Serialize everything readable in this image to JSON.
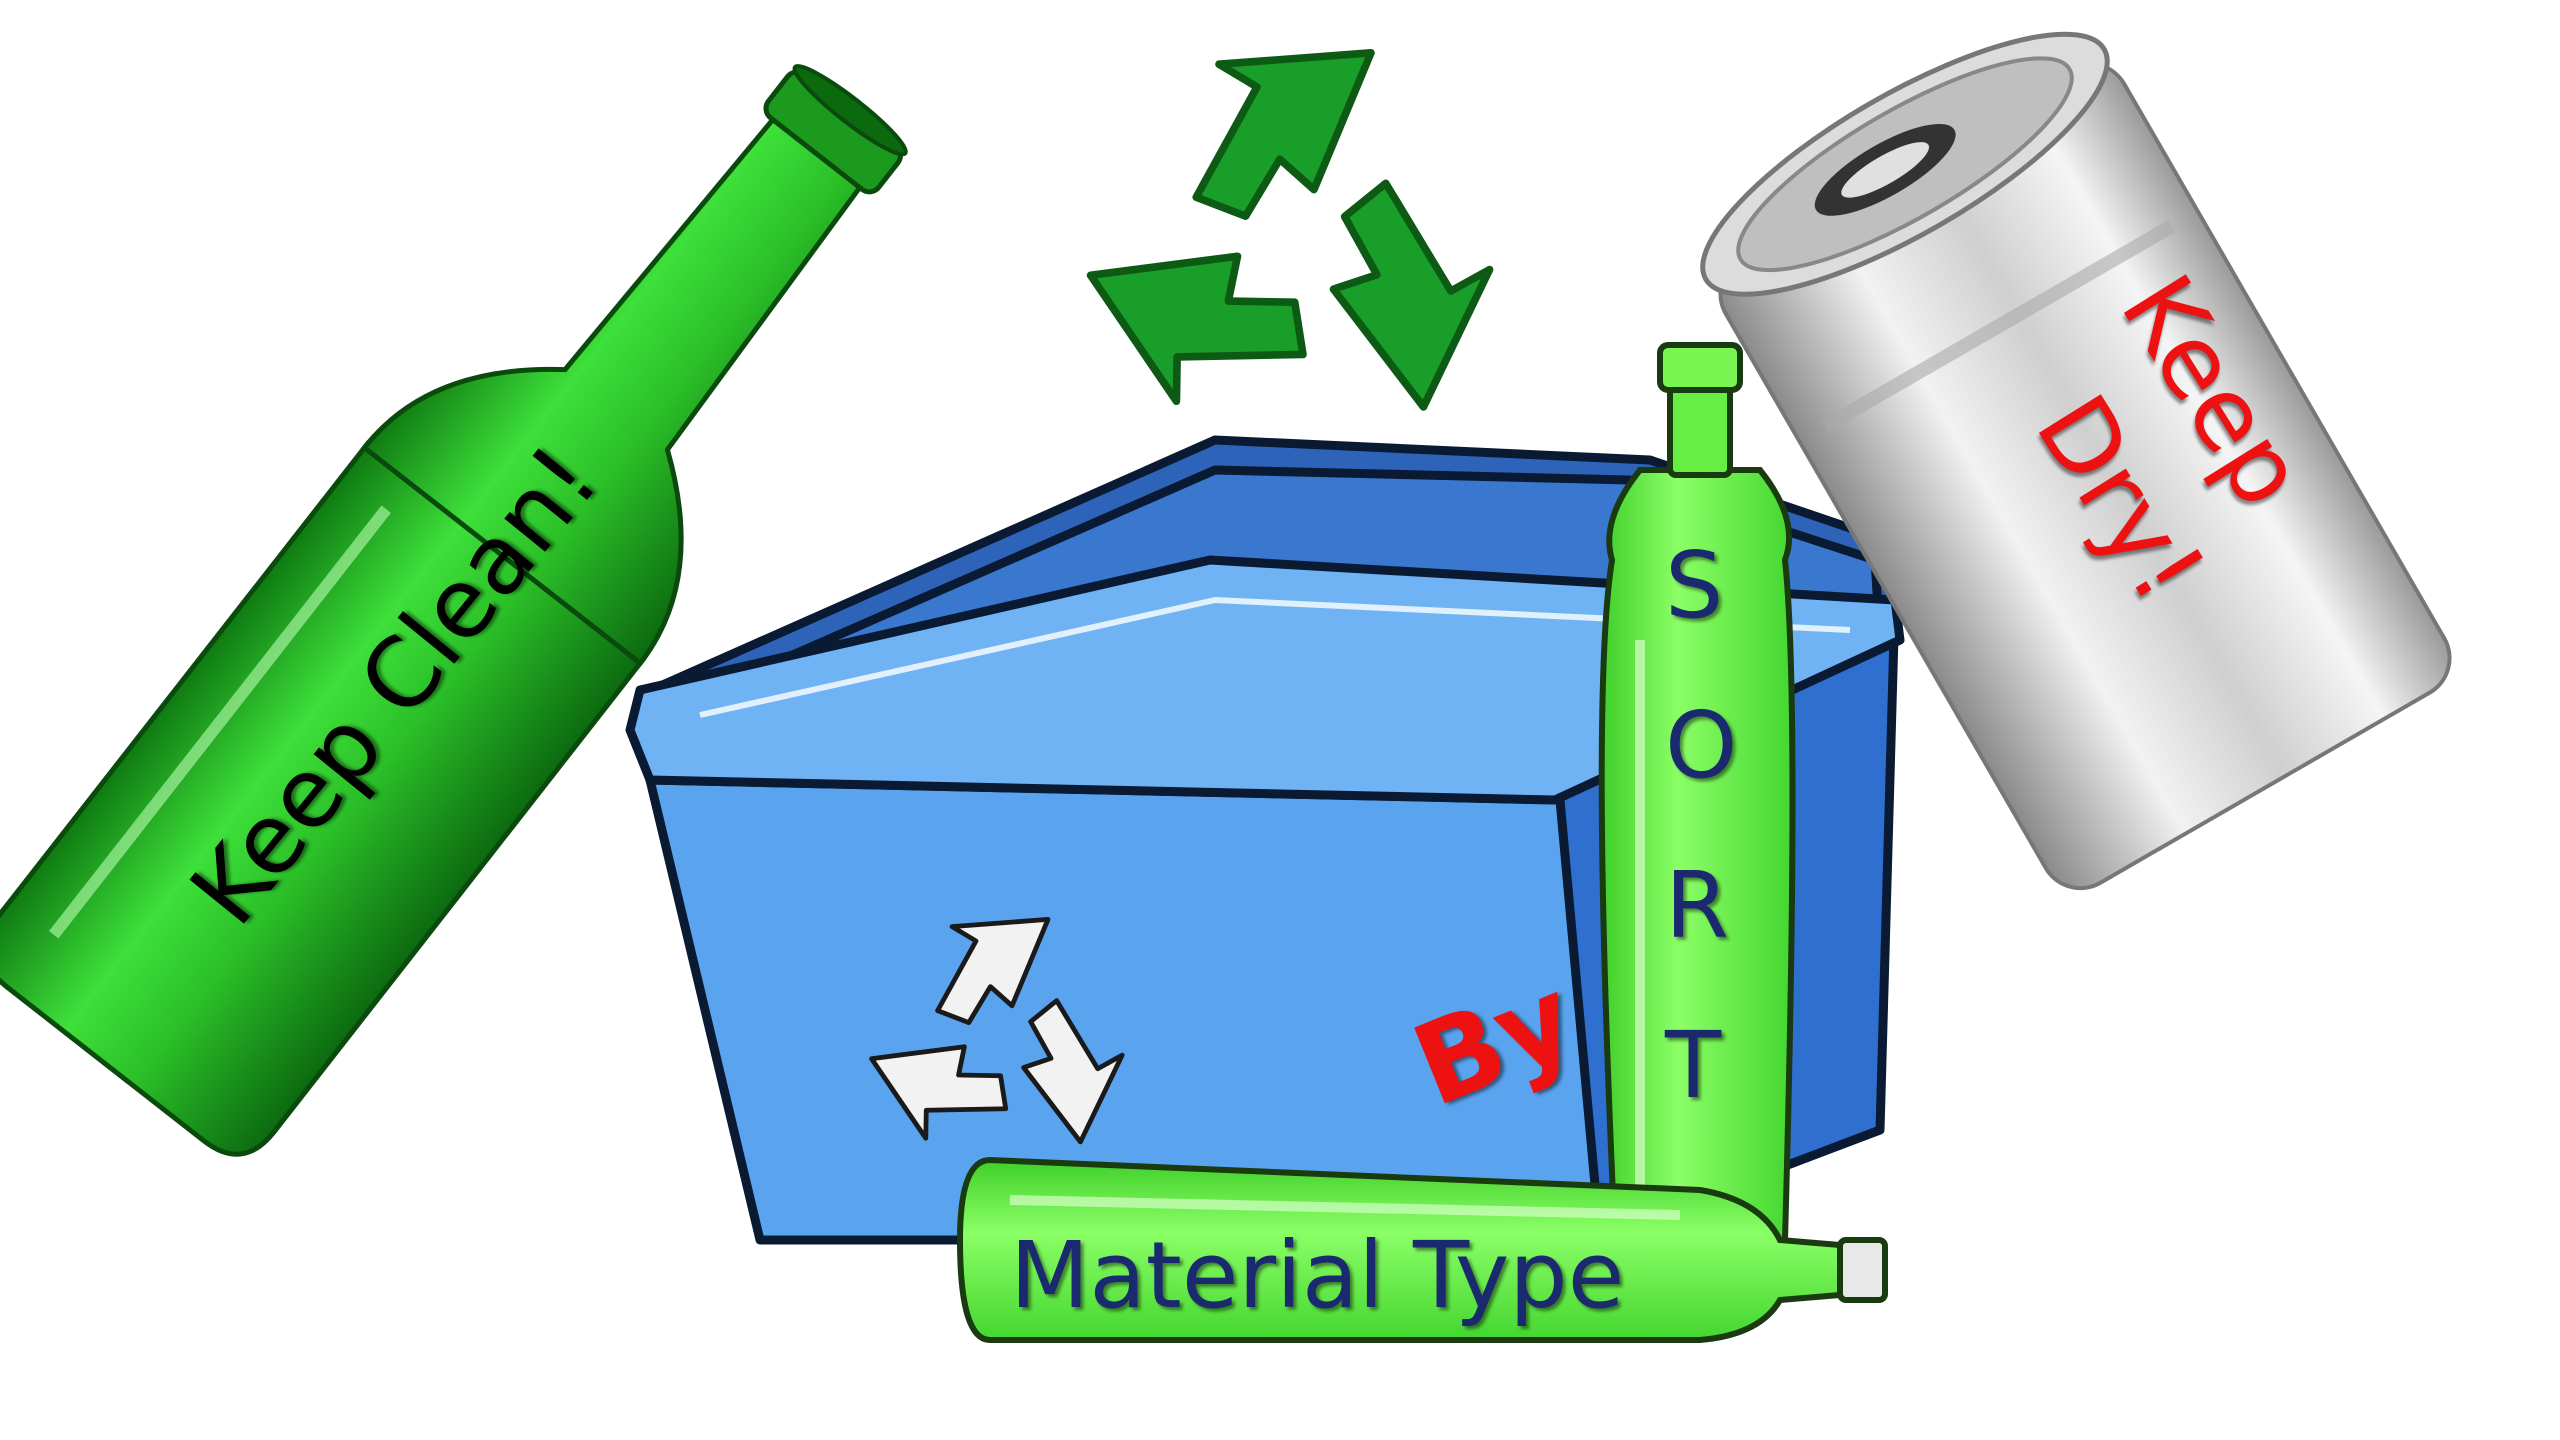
{
  "labels": {
    "keep_clean": "Keep Clean!",
    "keep_dry_line1": "Keep",
    "keep_dry_line2": "Dry!",
    "sort_letters": [
      "S",
      "O",
      "R",
      "T"
    ],
    "by": "By",
    "material_type": "Material Type"
  },
  "colors": {
    "recycle_symbol": "#1a9e2a",
    "bin_blue": "#4a90e2",
    "bin_blue_dark": "#2d63b8",
    "glass_bottle_green": "#2ec72e",
    "plastic_bottle_green": "#66ee44",
    "can_silver": "#c8c8c8",
    "keep_clean_text": "#000000",
    "keep_dry_text": "#ee1111",
    "sort_text": "#1b2a6e",
    "by_text": "#ee1111",
    "material_type_text": "#1b2a6e"
  },
  "icons": {
    "top_symbol": "recycle-symbol-icon",
    "bin_symbol": "recycle-symbol-icon"
  }
}
